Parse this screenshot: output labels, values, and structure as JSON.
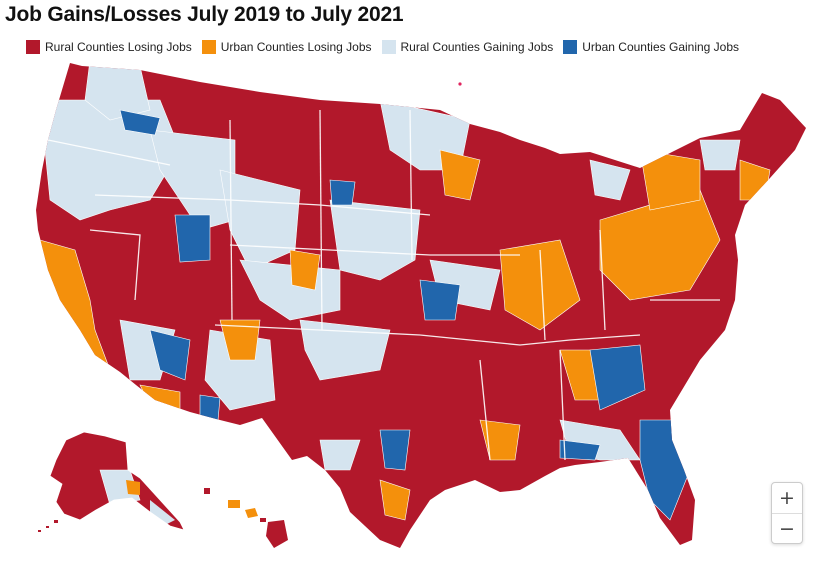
{
  "title": "Job Gains/Losses July 2019 to July 2021",
  "legend": [
    {
      "label": "Rural Counties Losing Jobs",
      "color": "#B2182B"
    },
    {
      "label": "Urban Counties Losing Jobs",
      "color": "#F4900C"
    },
    {
      "label": "Rural Counties Gaining Jobs",
      "color": "#D5E4EF"
    },
    {
      "label": "Urban Counties Gaining Jobs",
      "color": "#2166AC"
    }
  ],
  "zoom": {
    "in_label": "+",
    "out_label": "−"
  }
}
